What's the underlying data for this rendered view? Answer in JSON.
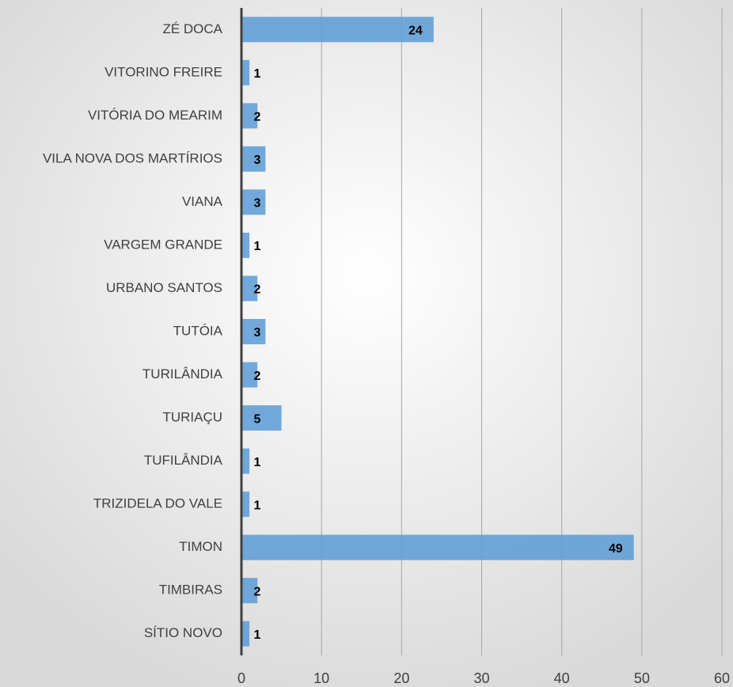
{
  "chart_data": {
    "type": "bar",
    "orientation": "horizontal",
    "categories": [
      "ZÉ DOCA",
      "VITORINO FREIRE",
      "VITÓRIA DO MEARIM",
      "VILA NOVA DOS MARTÍRIOS",
      "VIANA",
      "VARGEM GRANDE",
      "URBANO SANTOS",
      "TUTÓIA",
      "TURILÂNDIA",
      "TURIAÇU",
      "TUFILÂNDIA",
      "TRIZIDELA DO VALE",
      "TIMON",
      "TIMBIRAS",
      "SÍTIO NOVO"
    ],
    "values": [
      24,
      1,
      2,
      3,
      3,
      1,
      2,
      3,
      2,
      5,
      1,
      1,
      49,
      2,
      1
    ],
    "color": "#5b9bd5",
    "xlim": [
      0,
      60
    ],
    "xticks": [
      0,
      10,
      20,
      30,
      40,
      50,
      60
    ],
    "grid": true
  }
}
